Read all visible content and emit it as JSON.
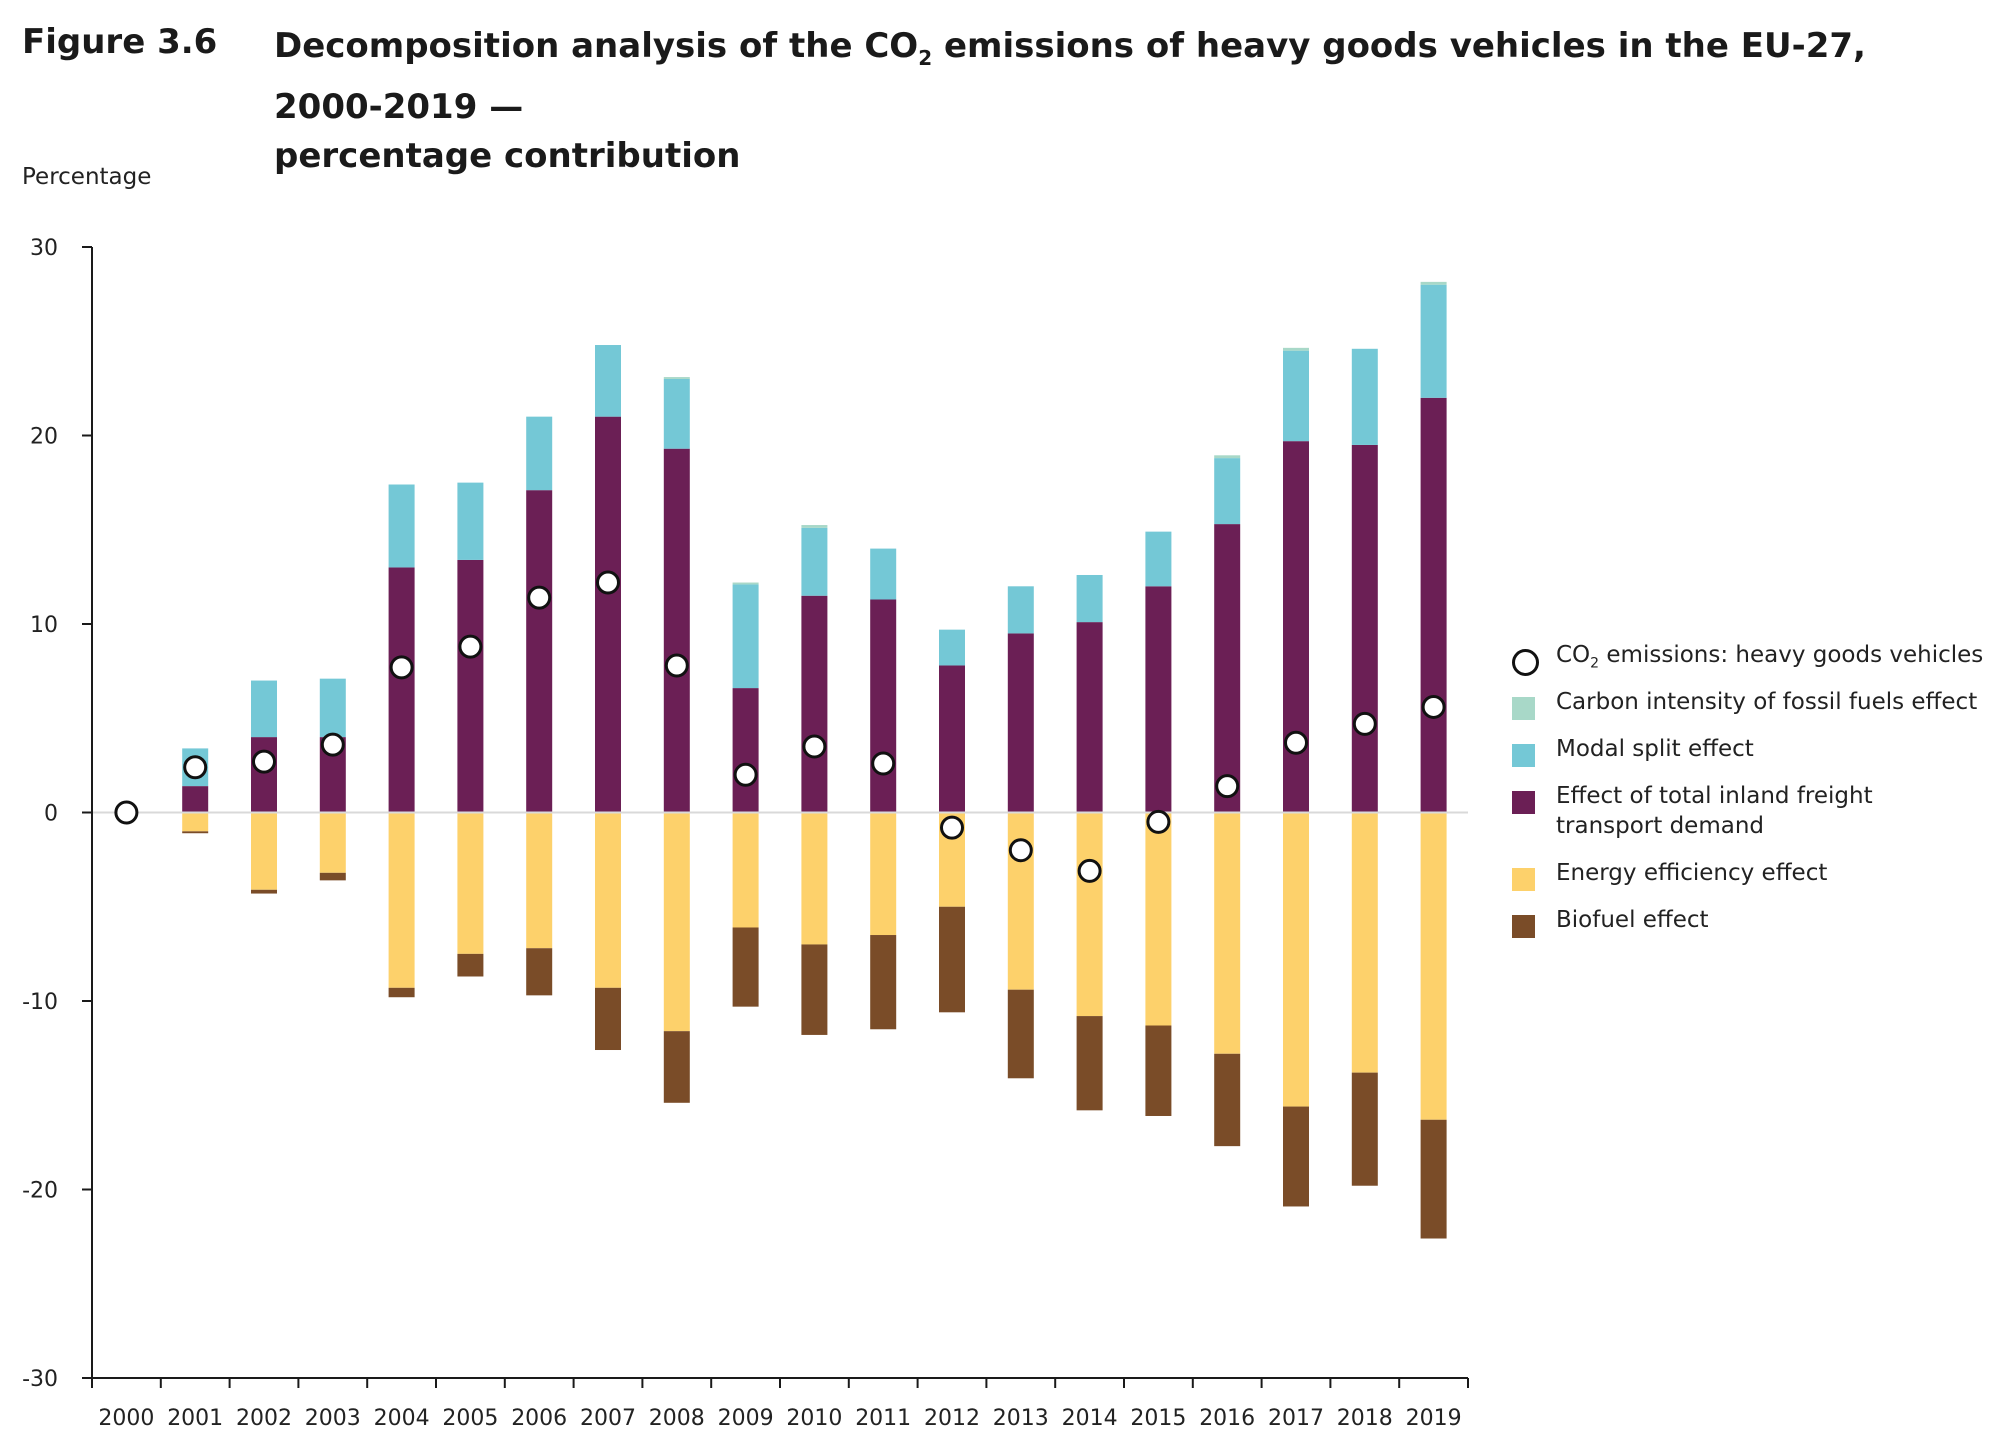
{
  "figure": {
    "label": "Figure 3.6",
    "title_part1": "Decomposition analysis of the CO",
    "title_sub": "2",
    "title_part2": " emissions of heavy goods vehicles in the EU-27, 2000-2019 —",
    "title_line2": "percentage contribution"
  },
  "colors": {
    "carbon": "#a8d8c8",
    "modal": "#74c8d6",
    "freight": "#6b1f55",
    "energy": "#fdd16b",
    "biofuel": "#7a4c28",
    "axis": "#1a1a1a",
    "zero": "#d9d9d9"
  },
  "legend": {
    "co2_part1": "CO",
    "co2_sub": "2",
    "co2_part2": " emissions: heavy goods vehicles",
    "carbon": "Carbon intensity of fossil fuels effect",
    "modal": "Modal split effect",
    "freight_line1": "Effect of total inland freight",
    "freight_line2": "transport demand",
    "energy": "Energy efficiency effect",
    "biofuel": "Biofuel effect"
  },
  "chart_data": {
    "type": "bar",
    "stacked": true,
    "ylabel": "Percentage",
    "ylim": [
      -30,
      30
    ],
    "yticks": [
      30,
      20,
      10,
      0,
      -10,
      -20,
      -30
    ],
    "grid": false,
    "legend_position": "right",
    "categories": [
      "2000",
      "2001",
      "2002",
      "2003",
      "2004",
      "2005",
      "2006",
      "2007",
      "2008",
      "2009",
      "2010",
      "2011",
      "2012",
      "2013",
      "2014",
      "2015",
      "2016",
      "2017",
      "2018",
      "2019"
    ],
    "series": [
      {
        "name": "Effect of total inland freight transport demand",
        "key": "freight",
        "values": [
          0,
          1.4,
          4.0,
          4.0,
          13.0,
          13.4,
          17.1,
          21.0,
          19.3,
          6.6,
          11.5,
          11.3,
          7.8,
          9.5,
          10.1,
          12.0,
          15.3,
          19.7,
          19.5,
          22.0
        ]
      },
      {
        "name": "Modal split effect",
        "key": "modal",
        "values": [
          0,
          2.0,
          3.0,
          3.1,
          4.4,
          4.1,
          3.9,
          3.8,
          3.7,
          5.5,
          3.6,
          2.7,
          1.9,
          2.5,
          2.5,
          2.9,
          3.5,
          4.8,
          5.1,
          6.0
        ]
      },
      {
        "name": "Carbon intensity of fossil fuels effect",
        "key": "carbon",
        "values": [
          0,
          0,
          0,
          0,
          0,
          0,
          0,
          0,
          0.1,
          0.1,
          0.15,
          0,
          0,
          0,
          0,
          0,
          0.15,
          0.15,
          0,
          0.15
        ]
      },
      {
        "name": "Energy efficiency effect",
        "key": "energy",
        "values": [
          0,
          -1.0,
          -4.1,
          -3.2,
          -9.3,
          -7.5,
          -7.2,
          -9.3,
          -11.6,
          -6.1,
          -7.0,
          -6.5,
          -5.0,
          -9.4,
          -10.8,
          -11.3,
          -12.8,
          -15.6,
          -13.8,
          -16.3
        ]
      },
      {
        "name": "Biofuel effect",
        "key": "biofuel",
        "values": [
          0,
          -0.1,
          -0.2,
          -0.4,
          -0.5,
          -1.2,
          -2.5,
          -3.3,
          -3.8,
          -4.2,
          -4.8,
          -5.0,
          -5.6,
          -4.7,
          -5.0,
          -4.8,
          -4.9,
          -5.3,
          -6.0,
          -6.3
        ]
      }
    ],
    "markers": {
      "name": "CO2 emissions: heavy goods vehicles",
      "values": [
        0,
        2.4,
        2.7,
        3.6,
        7.7,
        8.8,
        11.4,
        12.2,
        7.8,
        2.0,
        3.5,
        2.6,
        -0.8,
        -2.0,
        -3.1,
        -0.5,
        1.4,
        3.7,
        4.7,
        5.6
      ]
    }
  }
}
